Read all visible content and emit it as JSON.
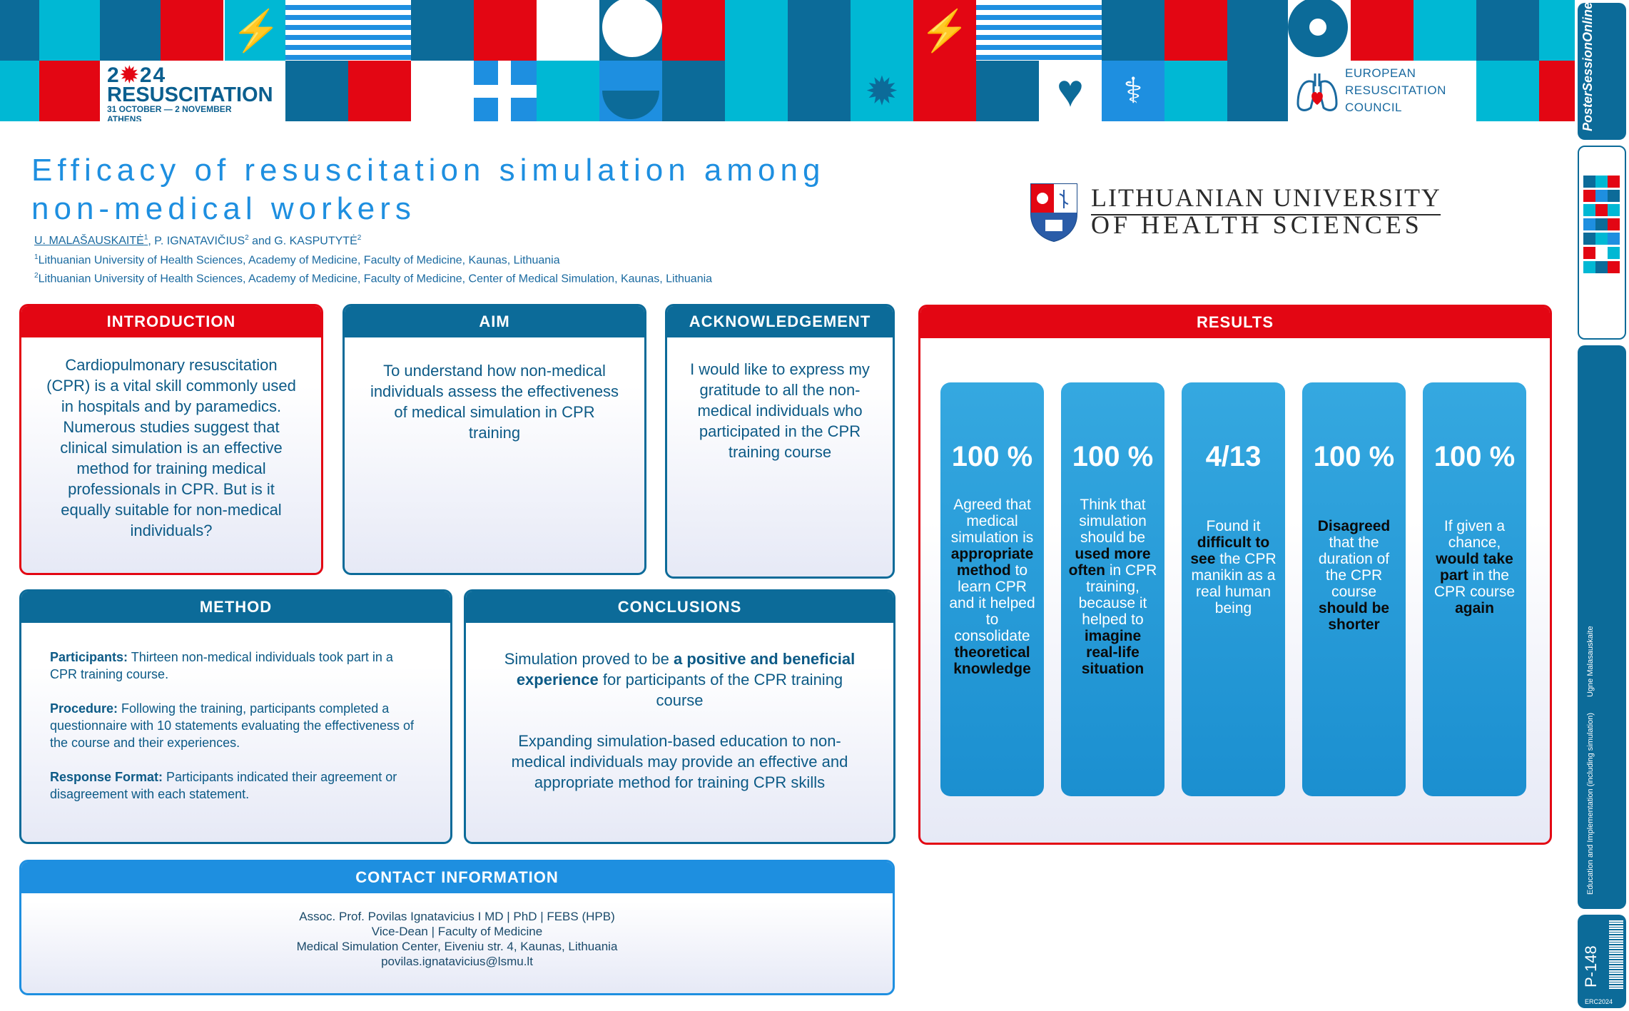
{
  "colors": {
    "red": "#e30613",
    "navy": "#0c6b99",
    "blue": "#1e8fe0",
    "cyan": "#00b8d4"
  },
  "banner": {
    "event_year_a": "2",
    "event_year_b": "24",
    "event_name": "RESUSCITATION",
    "event_dates": "31 OCTOBER — 2 NOVEMBER",
    "event_city": "ATHENS",
    "erc_line1": "EUROPEAN",
    "erc_line2": "RESUSCITATION",
    "erc_line3": "COUNCIL"
  },
  "side": {
    "brand": "PosterSessionOnline",
    "category": "Education and Implementation (including simulation)",
    "author": "Ugne Malasauskaite",
    "poster_number": "P-148",
    "congress": "ERC2024"
  },
  "header": {
    "title": "Efficacy of resuscitation simulation among non-medical workers",
    "author1": "U. MALAŠAUSKAITĖ",
    "author1_sup": "1",
    "author2": ", P. IGNATAVIČIUS",
    "author2_sup": "2",
    "author3": " and G. KASPUTYTĖ",
    "author3_sup": "2",
    "aff1_sup": "1",
    "aff1": "Lithuanian University of Health Sciences, Academy of Medicine, Faculty of Medicine, Kaunas, Lithuania",
    "aff2_sup": "2",
    "aff2": "Lithuanian University of Health Sciences, Academy of Medicine, Faculty of Medicine, Center of Medical Simulation, Kaunas, Lithuania",
    "university_line1": "LITHUANIAN UNIVERSITY",
    "university_line2": "OF HEALTH SCIENCES"
  },
  "introduction": {
    "heading": "INTRODUCTION",
    "text": "Cardiopulmonary resuscitation (CPR) is a vital skill commonly used in hospitals and by paramedics. Numerous studies suggest that clinical simulation is an effective method for training medical professionals in CPR. But is it equally suitable for non-medical individuals?"
  },
  "aim": {
    "heading": "AIM",
    "text": "To understand how non-medical individuals assess the effectiveness of medical simulation in CPR training"
  },
  "acknowledgement": {
    "heading": "ACKNOWLEDGEMENT",
    "text": "I would like to express my gratitude to all the non-medical individuals who participated in the CPR training course"
  },
  "method": {
    "heading": "METHOD",
    "p1_label": "Participants:",
    "p1_text": " Thirteen non-medical individuals took part in a CPR training course.",
    "p2_label": "Procedure:",
    "p2_text": " Following the training, participants completed a questionnaire with 10 statements evaluating the effectiveness of the course and their experiences.",
    "p3_label": "Response Format:",
    "p3_text": " Participants indicated their agreement or disagreement with each statement."
  },
  "conclusions": {
    "heading": "CONCLUSIONS",
    "c1_a": "Simulation proved to be ",
    "c1_b": "a positive and beneficial experience",
    "c1_c": " for participants of the CPR training course",
    "c2": "Expanding simulation-based education to non-medical individuals may provide an effective and appropriate method for training CPR skills"
  },
  "contact": {
    "heading": "CONTACT INFORMATION",
    "line1": "Assoc. Prof. Povilas Ignatavicius I MD | PhD | FEBS (HPB)",
    "line2": "Vice-Dean | Faculty of Medicine",
    "line3": "Medical Simulation Center, Eiveniu str. 4, Kaunas, Lithuania",
    "line4": "povilas.ignatavicius@lsmu.lt"
  },
  "results": {
    "heading": "RESULTS",
    "cards": [
      {
        "value": "100 %",
        "parts": [
          [
            "Agreed that medical simulation is ",
            false
          ],
          [
            "appropriate method",
            true
          ],
          [
            " to learn CPR and it helped to consolidate ",
            false
          ],
          [
            "theoretical knowledge",
            true
          ]
        ]
      },
      {
        "value": "100 %",
        "parts": [
          [
            "Think that simulation should be ",
            false
          ],
          [
            "used more often",
            true
          ],
          [
            " in CPR training, because it helped to ",
            false
          ],
          [
            "imagine real-life situation",
            true
          ]
        ]
      },
      {
        "value": "4/13",
        "parts": [
          [
            "Found it ",
            false
          ],
          [
            "difficult to see",
            true
          ],
          [
            " the CPR manikin as a real human being",
            false
          ]
        ]
      },
      {
        "value": "100 %",
        "parts": [
          [
            "Disagreed",
            true
          ],
          [
            " that the duration of the CPR course ",
            false
          ],
          [
            "should be shorter",
            true
          ]
        ]
      },
      {
        "value": "100 %",
        "parts": [
          [
            "If given a chance, ",
            false
          ],
          [
            "would take part",
            true
          ],
          [
            " in the CPR course ",
            false
          ],
          [
            "again",
            true
          ]
        ]
      }
    ]
  }
}
